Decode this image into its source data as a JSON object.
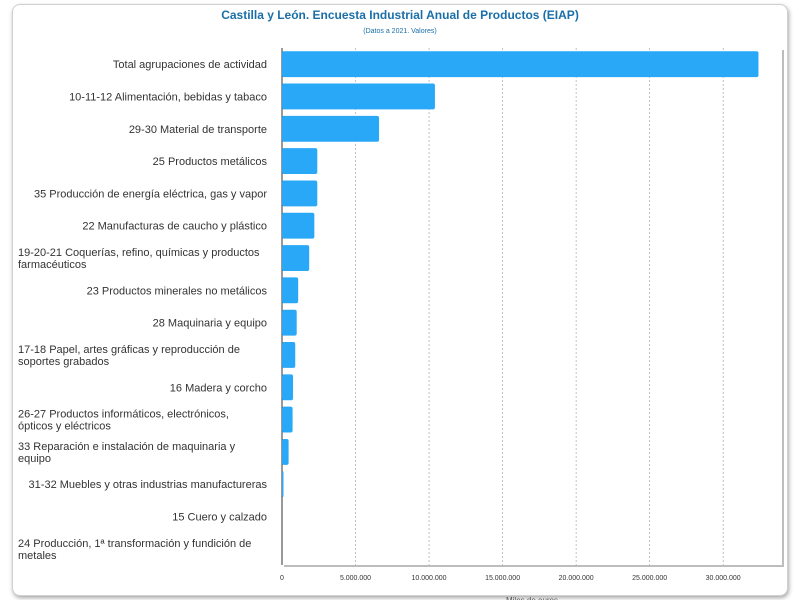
{
  "chart_data": {
    "type": "bar",
    "orientation": "horizontal",
    "title": "Castilla y León. Encuesta Industrial Anual de Productos (EIAP)",
    "subtitle": "(Datos a 2021. Valores)",
    "xlabel": "Miles de euros",
    "ylabel": "",
    "xlim": [
      0,
      34000000
    ],
    "xticks": [
      0,
      5000000,
      10000000,
      15000000,
      20000000,
      25000000,
      30000000
    ],
    "xtick_labels": [
      "0",
      "5.000.000",
      "10.000.000",
      "15.000.000",
      "20.000.000",
      "25.000.000",
      "30.000.000"
    ],
    "grid": true,
    "bar_color": "#2aa8f8",
    "categories": [
      "Total agrupaciones de actividad",
      "10-11-12 Alimentación, bebidas y tabaco",
      "29-30 Material de transporte",
      "25 Productos metálicos",
      "35 Producción de energía eléctrica, gas y vapor",
      "22 Manufacturas de caucho y plástico",
      "19-20-21 Coquerías, refino, químicas y productos farmacéuticos",
      "23 Productos minerales no metálicos",
      "28 Maquinaria y equipo",
      "17-18 Papel, artes gráficas y reproducción de soportes grabados",
      "16 Madera y corcho",
      "26-27 Productos informáticos, electrónicos, ópticos y eléctricos",
      "33 Reparación e instalación de maquinaria y equipo",
      "31-32 Muebles y otras industrias manufactureras",
      "15 Cuero y calzado",
      "24 Producción, 1ª transformación y fundición de metales"
    ],
    "category_lines": [
      [
        "Total agrupaciones de actividad"
      ],
      [
        "10-11-12 Alimentación, bebidas y tabaco"
      ],
      [
        "29-30 Material de transporte"
      ],
      [
        "25 Productos metálicos"
      ],
      [
        "35 Producción de energía eléctrica, gas y vapor"
      ],
      [
        "22 Manufacturas de caucho y plástico"
      ],
      [
        "19-20-21 Coquerías, refino, químicas y productos",
        "farmacéuticos"
      ],
      [
        "23 Productos minerales no metálicos"
      ],
      [
        "28 Maquinaria y equipo"
      ],
      [
        "17-18 Papel, artes gráficas y reproducción de",
        "soportes grabados"
      ],
      [
        "16 Madera y corcho"
      ],
      [
        "26-27 Productos informáticos, electrónicos,",
        "ópticos y eléctricos"
      ],
      [
        "33 Reparación e instalación de maquinaria y",
        "equipo"
      ],
      [
        "31-32 Muebles y otras industrias manufactureras"
      ],
      [
        "15 Cuero y calzado"
      ],
      [
        "24 Producción, 1ª transformación y fundición de",
        "metales"
      ]
    ],
    "values": [
      32400000,
      10400000,
      6600000,
      2400000,
      2400000,
      2200000,
      1850000,
      1100000,
      1000000,
      900000,
      750000,
      720000,
      450000,
      100000,
      0,
      0
    ]
  }
}
